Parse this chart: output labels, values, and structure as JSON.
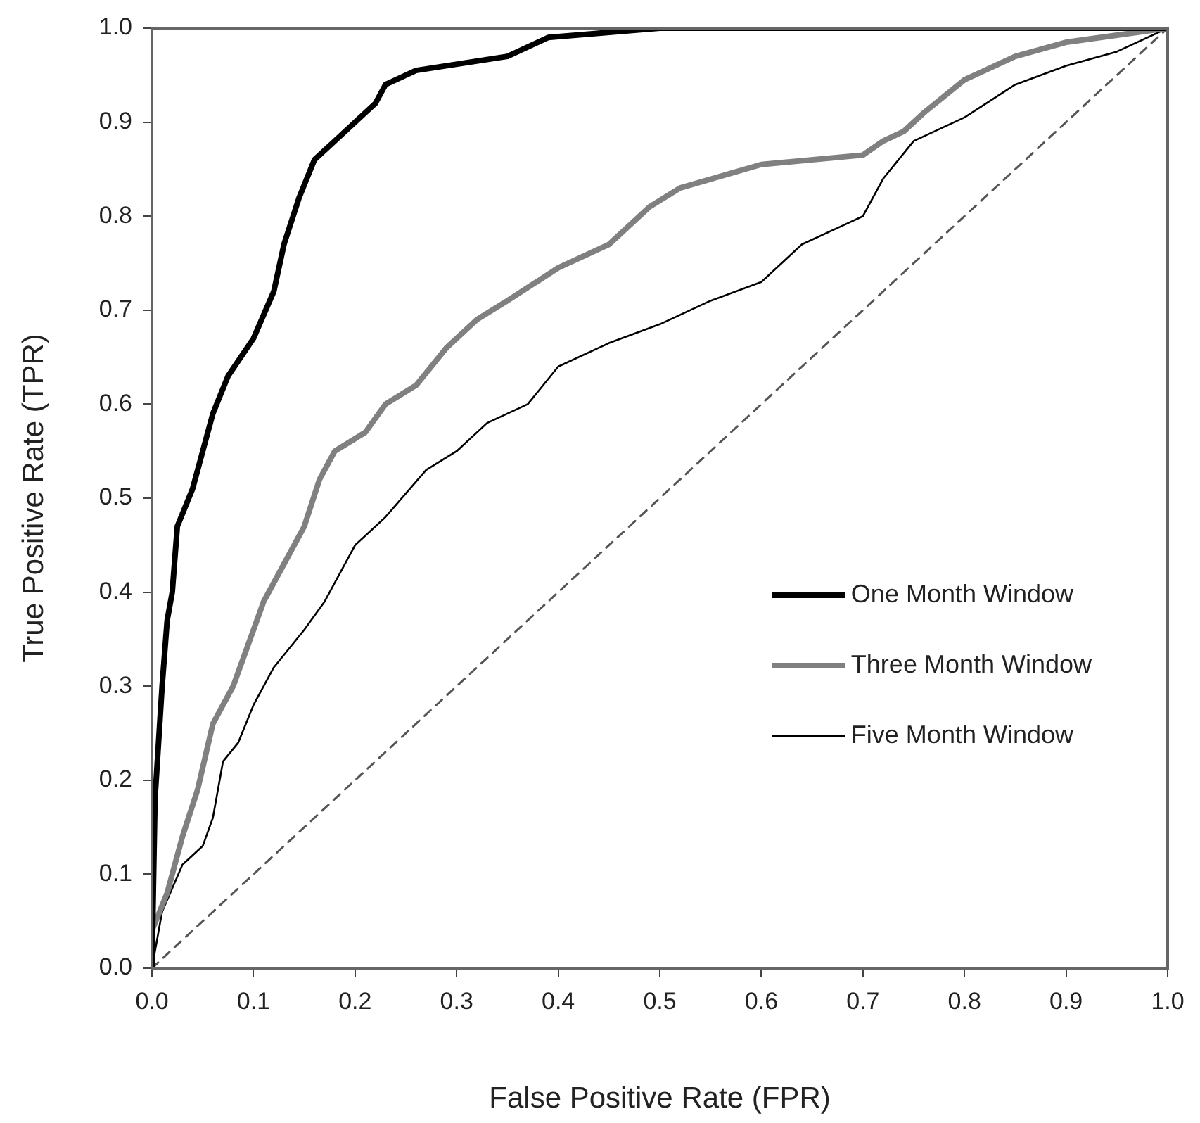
{
  "chart_data": {
    "type": "line",
    "xlabel": "False Positive Rate (FPR)",
    "ylabel": "True Positive Rate (TPR)",
    "xlim": [
      0,
      1
    ],
    "ylim": [
      0,
      1
    ],
    "xticks": [
      {
        "value": 0,
        "label": "0.0"
      },
      0.1,
      0.2,
      0.3,
      0.4,
      0.5,
      0.6,
      0.7,
      0.8,
      0.9,
      {
        "value": 1,
        "label": "1.0"
      }
    ],
    "yticks": [
      {
        "value": 0,
        "label": "0.0"
      },
      0.1,
      0.2,
      0.3,
      0.4,
      0.5,
      0.6,
      0.7,
      0.8,
      0.9,
      {
        "value": 1,
        "label": "1.0"
      }
    ],
    "grid": false,
    "legend": "bottom right",
    "marker": "none",
    "series": [
      {
        "name": "One Month Window",
        "color": "#000000",
        "x": [
          0,
          0.003,
          0.01,
          0.015,
          0.02,
          0.025,
          0.04,
          0.05,
          0.06,
          0.075,
          0.1,
          0.12,
          0.13,
          0.145,
          0.16,
          0.18,
          0.2,
          0.22,
          0.23,
          0.26,
          0.35,
          0.39,
          0.5,
          1
        ],
        "values": [
          0,
          0.18,
          0.3,
          0.37,
          0.4,
          0.47,
          0.51,
          0.55,
          0.59,
          0.63,
          0.67,
          0.72,
          0.77,
          0.82,
          0.86,
          0.88,
          0.9,
          0.92,
          0.94,
          0.955,
          0.97,
          0.99,
          1,
          1
        ]
      },
      {
        "name": "Three Month Window",
        "color": "#808080",
        "x": [
          0,
          0.015,
          0.03,
          0.045,
          0.06,
          0.08,
          0.1,
          0.11,
          0.13,
          0.15,
          0.165,
          0.18,
          0.21,
          0.23,
          0.26,
          0.29,
          0.32,
          0.35,
          0.4,
          0.45,
          0.49,
          0.52,
          0.6,
          0.7,
          0.72,
          0.74,
          0.76,
          0.8,
          0.85,
          0.9,
          1
        ],
        "values": [
          0.04,
          0.08,
          0.14,
          0.19,
          0.26,
          0.3,
          0.36,
          0.39,
          0.43,
          0.47,
          0.52,
          0.55,
          0.57,
          0.6,
          0.62,
          0.66,
          0.69,
          0.71,
          0.745,
          0.77,
          0.81,
          0.83,
          0.855,
          0.865,
          0.88,
          0.89,
          0.91,
          0.945,
          0.97,
          0.985,
          1
        ]
      },
      {
        "name": "Five Month Window",
        "color": "#000000",
        "x": [
          0,
          0.01,
          0.03,
          0.05,
          0.06,
          0.07,
          0.085,
          0.1,
          0.12,
          0.15,
          0.17,
          0.2,
          0.23,
          0.27,
          0.3,
          0.33,
          0.37,
          0.4,
          0.45,
          0.5,
          0.55,
          0.6,
          0.64,
          0.68,
          0.7,
          0.72,
          0.75,
          0.8,
          0.85,
          0.9,
          0.95,
          1
        ],
        "values": [
          0,
          0.06,
          0.11,
          0.13,
          0.16,
          0.22,
          0.24,
          0.28,
          0.32,
          0.36,
          0.39,
          0.45,
          0.48,
          0.53,
          0.55,
          0.58,
          0.6,
          0.64,
          0.665,
          0.685,
          0.71,
          0.73,
          0.77,
          0.79,
          0.8,
          0.84,
          0.88,
          0.905,
          0.94,
          0.96,
          0.975,
          1
        ]
      },
      {
        "color": "#555555",
        "line_style": "dashed",
        "x": [
          0,
          1
        ],
        "values": [
          0,
          1
        ]
      }
    ]
  }
}
